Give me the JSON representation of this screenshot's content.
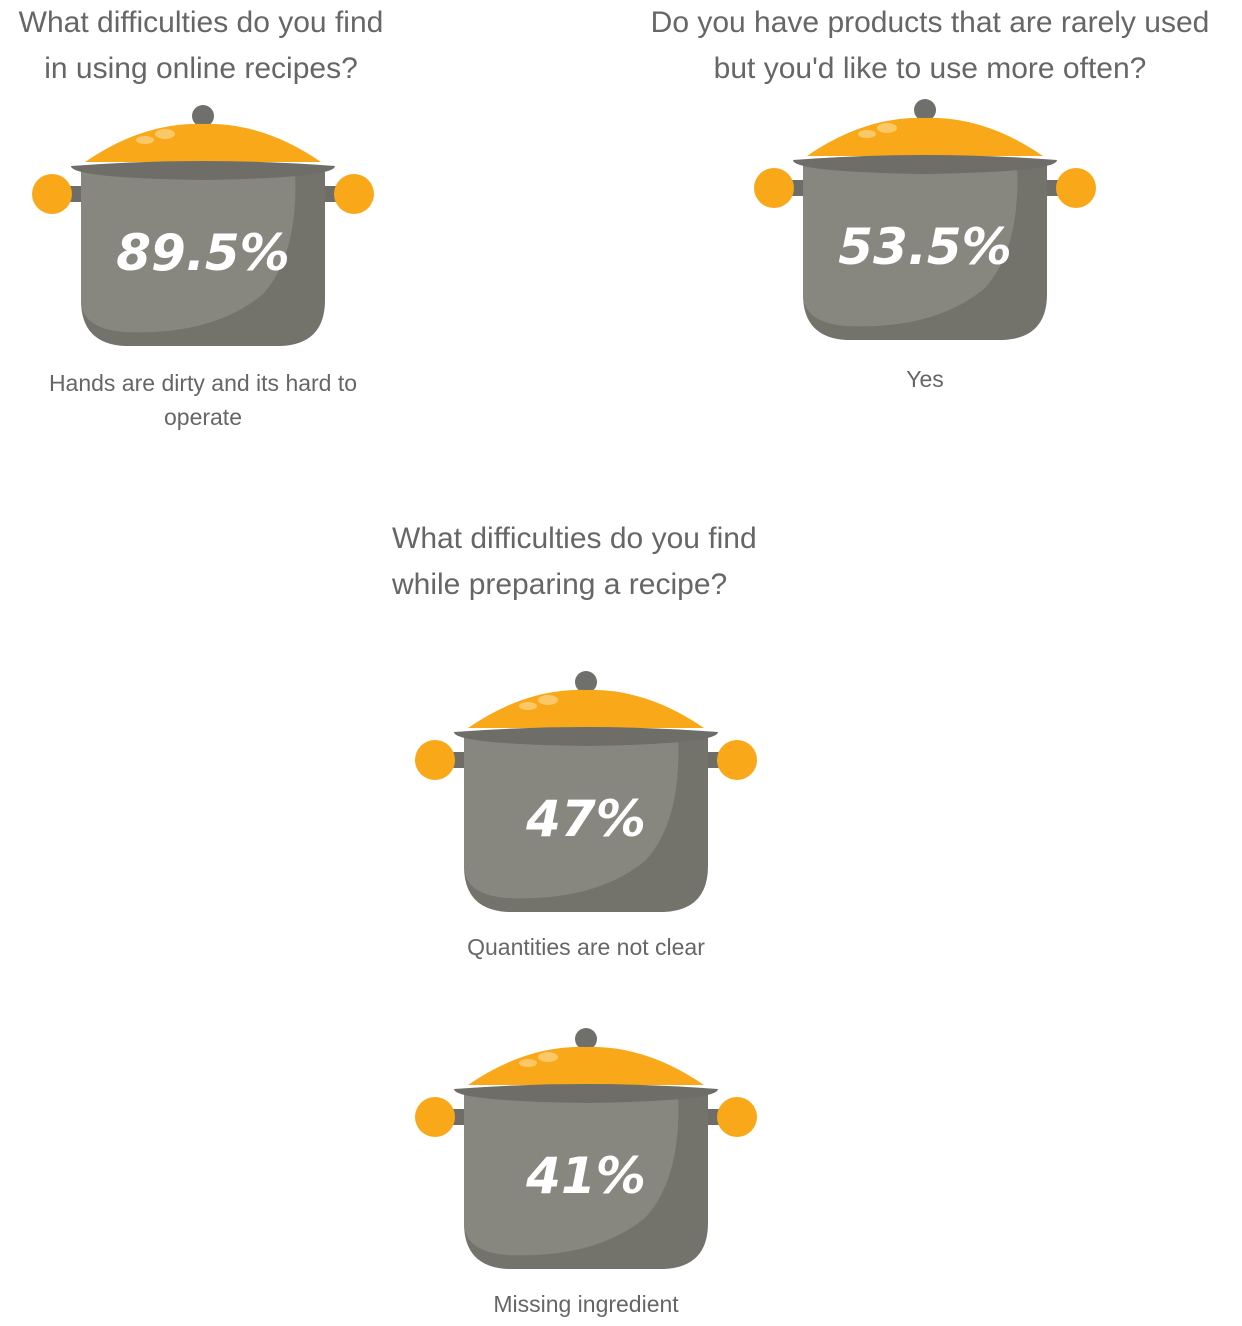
{
  "sections": [
    {
      "question": [
        "What difficulties do you find",
        "in using online recipes?"
      ],
      "items": [
        {
          "value": "89.5%",
          "caption": "Hands are dirty and its hard to operate"
        }
      ]
    },
    {
      "question": [
        "Do you have products that are rarely used",
        "but you'd like to use more often?"
      ],
      "items": [
        {
          "value": "53.5%",
          "caption": "Yes"
        }
      ]
    },
    {
      "question": [
        "What difficulties do you find",
        "while preparing a recipe?"
      ],
      "items": [
        {
          "value": "47%",
          "caption": "Quantities are not clear"
        },
        {
          "value": "41%",
          "caption": "Missing ingredient"
        }
      ]
    }
  ]
}
